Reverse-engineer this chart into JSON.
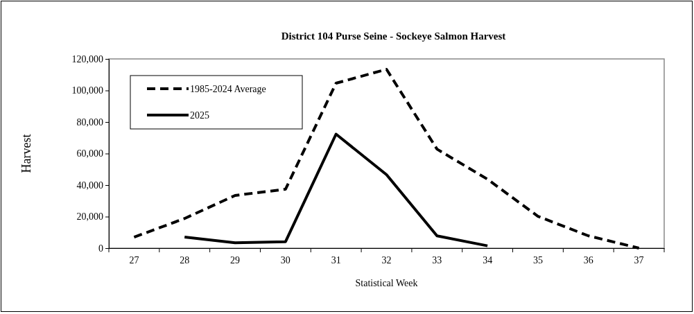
{
  "chart_data": {
    "type": "line",
    "title": "District 104 Purse Seine  - Sockeye Salmon Harvest",
    "xlabel": "Statistical Week",
    "ylabel": "Harvest",
    "categories": [
      "27",
      "28",
      "29",
      "30",
      "31",
      "32",
      "33",
      "34",
      "35",
      "36",
      "37"
    ],
    "series": [
      {
        "name": "1985-2024 Average",
        "color": "#000000",
        "line_style": "dashed",
        "values": [
          7000,
          18800,
          33400,
          37400,
          104600,
          113400,
          62800,
          43700,
          20200,
          7800,
          0
        ]
      },
      {
        "name": "2025",
        "color": "#000000",
        "line_style": "solid",
        "values": [
          null,
          7000,
          3400,
          4100,
          72300,
          46600,
          7800,
          1500,
          null,
          null,
          null
        ]
      }
    ],
    "ylim": [
      0,
      120000
    ],
    "yticks": [
      {
        "value": 0,
        "label": "0"
      },
      {
        "value": 20000,
        "label": "20,000"
      },
      {
        "value": 40000,
        "label": "40,000"
      },
      {
        "value": 60000,
        "label": "60,000"
      },
      {
        "value": 80000,
        "label": "80,000"
      },
      {
        "value": 100000,
        "label": "100,000"
      },
      {
        "value": 120000,
        "label": "120,000"
      }
    ],
    "grid": false,
    "legend": "top left",
    "marker": "none"
  }
}
